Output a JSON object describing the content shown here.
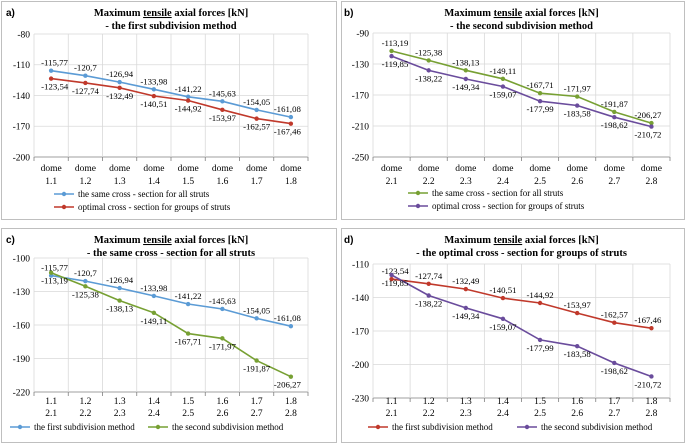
{
  "colors": {
    "blue": "#5b9bd5",
    "red": "#c0392b",
    "green": "#77a033",
    "purple": "#6a4c9c"
  },
  "chart_data": [
    {
      "label": "a)",
      "type": "line",
      "title_line1_pre": "Maximum ",
      "title_line1_u": "tensile",
      "title_line1_post": " axial forces [kN]",
      "title_line2": " - the first subdivision method",
      "ylim": [
        -200,
        -80
      ],
      "yticks": [
        -80,
        -110,
        -140,
        -170,
        -200
      ],
      "cat_rows": [
        [
          "dome",
          "dome",
          "dome",
          "dome",
          "dome",
          "dome",
          "dome",
          "dome"
        ],
        [
          "1.1",
          "1.2",
          "1.3",
          "1.4",
          "1.5",
          "1.6",
          "1.7",
          "1.8"
        ]
      ],
      "series": [
        {
          "name": "the same cross - section for all struts",
          "color": "blue",
          "values": [
            -115.77,
            -120.7,
            -126.94,
            -133.98,
            -141.22,
            -145.63,
            -154.05,
            -161.08
          ],
          "labels": [
            "-115,77",
            "-120,7",
            "-126,94",
            "-133,98",
            "-141,22",
            "-145,63",
            "-154,05",
            "-161,08"
          ],
          "label_pos": "above"
        },
        {
          "name": "optimal cross - section for groups of struts",
          "color": "red",
          "values": [
            -123.54,
            -127.74,
            -132.49,
            -140.51,
            -144.92,
            -153.97,
            -162.57,
            -167.46
          ],
          "labels": [
            "-123,54",
            "-127,74",
            "-132,49",
            "-140,51",
            "-144,92",
            "-153,97",
            "-162,57",
            "-167,46"
          ],
          "label_pos": "below"
        }
      ],
      "legend": "bottom"
    },
    {
      "label": "b)",
      "type": "line",
      "title_line1_pre": "Maximum ",
      "title_line1_u": "tensile",
      "title_line1_post": " axial forces [kN]",
      "title_line2": " - the second subdivision method",
      "ylim": [
        -250,
        -90
      ],
      "yticks": [
        -90,
        -130,
        -170,
        -210,
        -250
      ],
      "cat_rows": [
        [
          "dome",
          "dome",
          "dome",
          "dome",
          "dome",
          "dome",
          "dome",
          "dome"
        ],
        [
          "2.1",
          "2.2",
          "2.3",
          "2.4",
          "2.5",
          "2.6",
          "2.7",
          "2.8"
        ]
      ],
      "series": [
        {
          "name": "the same cross - section for all struts",
          "color": "green",
          "values": [
            -113.19,
            -125.38,
            -138.13,
            -149.11,
            -167.71,
            -171.97,
            -191.87,
            -206.27
          ],
          "labels": [
            "-113,19",
            "-125,38",
            "-138,13",
            "-149,11",
            "-167,71",
            "-171,97",
            "-191,87",
            "-206,27"
          ],
          "label_pos": "above"
        },
        {
          "name": "optimal cross - section for groups of struts",
          "color": "purple",
          "values": [
            -119.85,
            -138.22,
            -149.34,
            -159.07,
            -177.99,
            -183.58,
            -198.62,
            -210.72
          ],
          "labels": [
            "-119,85",
            "-138,22",
            "-149,34",
            "-159,07",
            "-177,99",
            "-183,58",
            "-198,62",
            "-210,72"
          ],
          "label_pos": "below"
        }
      ],
      "legend": "bottom"
    },
    {
      "label": "c)",
      "type": "line",
      "title_line1_pre": "Maximum ",
      "title_line1_u": "tensile",
      "title_line1_post": " axial forces [kN]",
      "title_line2": " - the same cross - section for all struts",
      "ylim": [
        -220,
        -100
      ],
      "yticks": [
        -100,
        -130,
        -160,
        -190,
        -220
      ],
      "cat_rows": [
        [
          "1.1",
          "1.2",
          "1.3",
          "1.4",
          "1.5",
          "1.6",
          "1.7",
          "1.8"
        ],
        [
          "2.1",
          "2.2",
          "2.3",
          "2.4",
          "2.5",
          "2.6",
          "2.7",
          "2.8"
        ]
      ],
      "series": [
        {
          "name": "the first subdivision method",
          "color": "blue",
          "values": [
            -115.77,
            -120.7,
            -126.94,
            -133.98,
            -141.22,
            -145.63,
            -154.05,
            -161.08
          ],
          "labels": [
            "-115,77",
            "-120,7",
            "-126,94",
            "-133,98",
            "-141,22",
            "-145,63",
            "-154,05",
            "-161,08"
          ],
          "label_pos": "above"
        },
        {
          "name": "the second subdivision method",
          "color": "green",
          "values": [
            -113.19,
            -125.38,
            -138.13,
            -149.11,
            -167.71,
            -171.97,
            -191.87,
            -206.27
          ],
          "labels": [
            "-113,19",
            "-125,38",
            "-138,13",
            "-149,11",
            "-167,71",
            "-171,97",
            "-191,87",
            "-206,27"
          ],
          "label_pos": "below"
        }
      ],
      "legend": "bottom"
    },
    {
      "label": "d)",
      "type": "line",
      "title_line1_pre": "Maximum ",
      "title_line1_u": "tensile",
      "title_line1_post": " axial forces [kN]",
      "title_line2": " - the optimal cross - section for groups of struts",
      "ylim": [
        -230,
        -110
      ],
      "yticks": [
        -110,
        -140,
        -170,
        -200,
        -230
      ],
      "cat_rows": [
        [
          "1.1",
          "1.2",
          "1.3",
          "1.4",
          "1.5",
          "1.6",
          "1.7",
          "1.8"
        ],
        [
          "2.1",
          "2.2",
          "2.3",
          "2.4",
          "2.5",
          "2.6",
          "2.7",
          "2.8"
        ]
      ],
      "series": [
        {
          "name": "the first subdivision method",
          "color": "red",
          "values": [
            -123.54,
            -127.74,
            -132.49,
            -140.51,
            -144.92,
            -153.97,
            -162.57,
            -167.46
          ],
          "labels": [
            "-123,54",
            "-127,74",
            "-132,49",
            "-140,51",
            "-144,92",
            "-153,97",
            "-162,57",
            "-167,46"
          ],
          "label_pos": "above"
        },
        {
          "name": "the second subdivision method",
          "color": "purple",
          "values": [
            -119.85,
            -138.22,
            -149.34,
            -159.07,
            -177.99,
            -183.58,
            -198.62,
            -210.72
          ],
          "labels": [
            "-119,85",
            "-138,22",
            "-149,34",
            "-159,07",
            "-177,99",
            "-183,58",
            "-198,62",
            "-210,72"
          ],
          "label_pos": "below"
        }
      ],
      "legend": "bottom"
    }
  ]
}
